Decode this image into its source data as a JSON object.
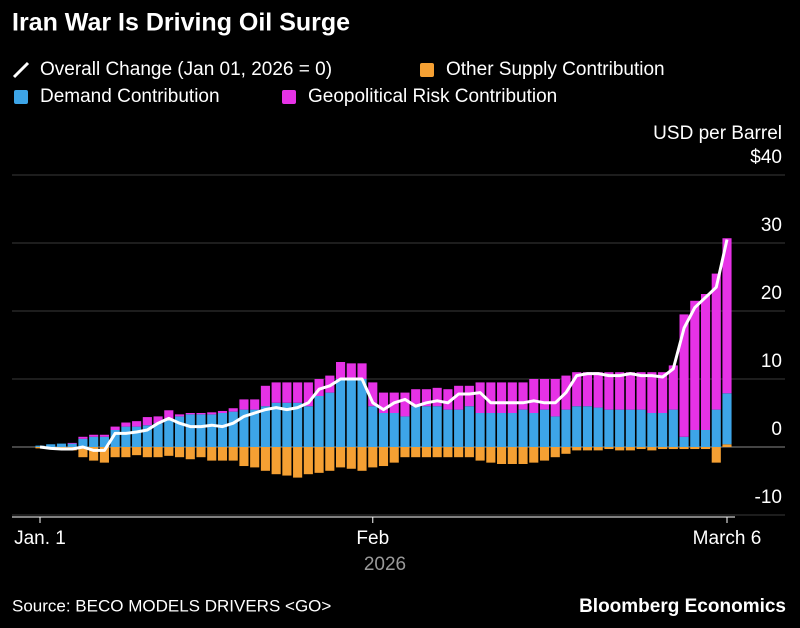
{
  "chart_data": {
    "type": "bar",
    "title": "Iran War Is Driving Oil Surge",
    "y_label": "USD per Barrel",
    "x_label": "2026",
    "source": "Source: BECO MODELS DRIVERS <GO>",
    "brand": "Bloomberg Economics",
    "stacked": true,
    "grid": true,
    "categories": [
      "Jan. 1",
      null,
      null,
      null,
      null,
      null,
      null,
      null,
      null,
      null,
      null,
      null,
      null,
      null,
      null,
      null,
      null,
      null,
      null,
      null,
      null,
      null,
      null,
      null,
      null,
      null,
      null,
      null,
      null,
      null,
      null,
      "Feb",
      null,
      null,
      null,
      null,
      null,
      null,
      null,
      null,
      null,
      null,
      null,
      null,
      null,
      null,
      null,
      null,
      null,
      null,
      null,
      null,
      null,
      null,
      null,
      null,
      null,
      null,
      null,
      null,
      null,
      null,
      null,
      null,
      "March 6"
    ],
    "ylim": [
      -10,
      40
    ],
    "yticks": [
      -10,
      0,
      10,
      20,
      30,
      {
        "value": 40,
        "label": "$40"
      }
    ],
    "series": [
      {
        "name": "Overall Change (Jan 01, 2026 = 0)",
        "type": "line",
        "color": "#ffffff",
        "values": [
          0,
          -0.2,
          -0.3,
          -0.3,
          0,
          -0.5,
          -0.5,
          2,
          2,
          2.2,
          2.5,
          3.5,
          4.2,
          3.5,
          3,
          3,
          3.2,
          3,
          3.5,
          4.5,
          5,
          5.5,
          5.8,
          5.5,
          5.8,
          6.5,
          8.5,
          9,
          10,
          10,
          10,
          6.5,
          5.5,
          6.5,
          7,
          6,
          6.5,
          6.8,
          6.5,
          7.8,
          7.8,
          8,
          6.5,
          6.5,
          6.5,
          6.5,
          6.8,
          6.5,
          6.5,
          8,
          10.5,
          10.8,
          10.8,
          10.5,
          10.5,
          10.8,
          10.5,
          10.5,
          10.3,
          11.5,
          17.5,
          20.5,
          22,
          23.5,
          30.5
        ]
      },
      {
        "name": "Other Supply Contribution",
        "color": "#f5a033",
        "values": [
          -0.2,
          -0.3,
          -0.3,
          -0.5,
          -1.5,
          -2,
          -2.3,
          -1.5,
          -1.5,
          -1.2,
          -1.5,
          -1.5,
          -1.3,
          -1.5,
          -1.8,
          -1.5,
          -2,
          -2,
          -2,
          -2.8,
          -3,
          -3.5,
          -4,
          -4.2,
          -4.5,
          -4,
          -3.8,
          -3.5,
          -3,
          -3.2,
          -3.5,
          -3,
          -2.8,
          -2.3,
          -1.5,
          -1.5,
          -1.5,
          -1.5,
          -1.5,
          -1.5,
          -1.5,
          -2,
          -2.3,
          -2.5,
          -2.5,
          -2.5,
          -2.3,
          -2,
          -1.5,
          -1,
          -0.5,
          -0.5,
          -0.5,
          -0.3,
          -0.5,
          -0.5,
          -0.3,
          -0.5,
          -0.3,
          -0.3,
          -0.3,
          -0.3,
          -0.3,
          -2.3,
          0.4
        ]
      },
      {
        "name": "Demand Contribution",
        "color": "#3da5e8",
        "values": [
          0.2,
          0.4,
          0.5,
          0.5,
          1.2,
          1.5,
          1.5,
          2.5,
          3,
          3,
          3.2,
          3.5,
          4,
          4.5,
          4.8,
          4.8,
          4.8,
          5,
          5.2,
          5.5,
          5.5,
          6,
          6.5,
          6.5,
          6.5,
          6,
          7.5,
          8,
          10,
          10,
          10,
          6,
          5,
          5,
          4.5,
          6,
          6,
          6,
          5.5,
          5.5,
          6,
          5,
          5,
          5,
          5,
          5.5,
          5,
          5.5,
          4.5,
          5.5,
          6,
          6,
          5.8,
          5.5,
          5.5,
          5.5,
          5.5,
          5,
          5,
          5.5,
          1.5,
          2.5,
          2.5,
          5.5,
          7.5
        ]
      },
      {
        "name": "Geopolitical Risk Contribution",
        "color": "#e632e6",
        "values": [
          0,
          0,
          0,
          0.1,
          0.3,
          0.3,
          0.3,
          0.5,
          0.6,
          0.8,
          1.2,
          1,
          1.4,
          0.3,
          0.2,
          0.2,
          0.3,
          0.3,
          0.5,
          1.5,
          1.5,
          3,
          3,
          3,
          3,
          3.5,
          2.5,
          2.5,
          2.5,
          2.3,
          2.3,
          3.5,
          3,
          3,
          3.5,
          2.5,
          2.5,
          2.7,
          3,
          3.5,
          3,
          4.5,
          4.5,
          4.5,
          4.5,
          4,
          5,
          4.5,
          5.5,
          5,
          5,
          5,
          5.2,
          5.5,
          5.5,
          5.5,
          5.5,
          6,
          6,
          6.5,
          18,
          19,
          20,
          20,
          22.8
        ]
      }
    ]
  }
}
